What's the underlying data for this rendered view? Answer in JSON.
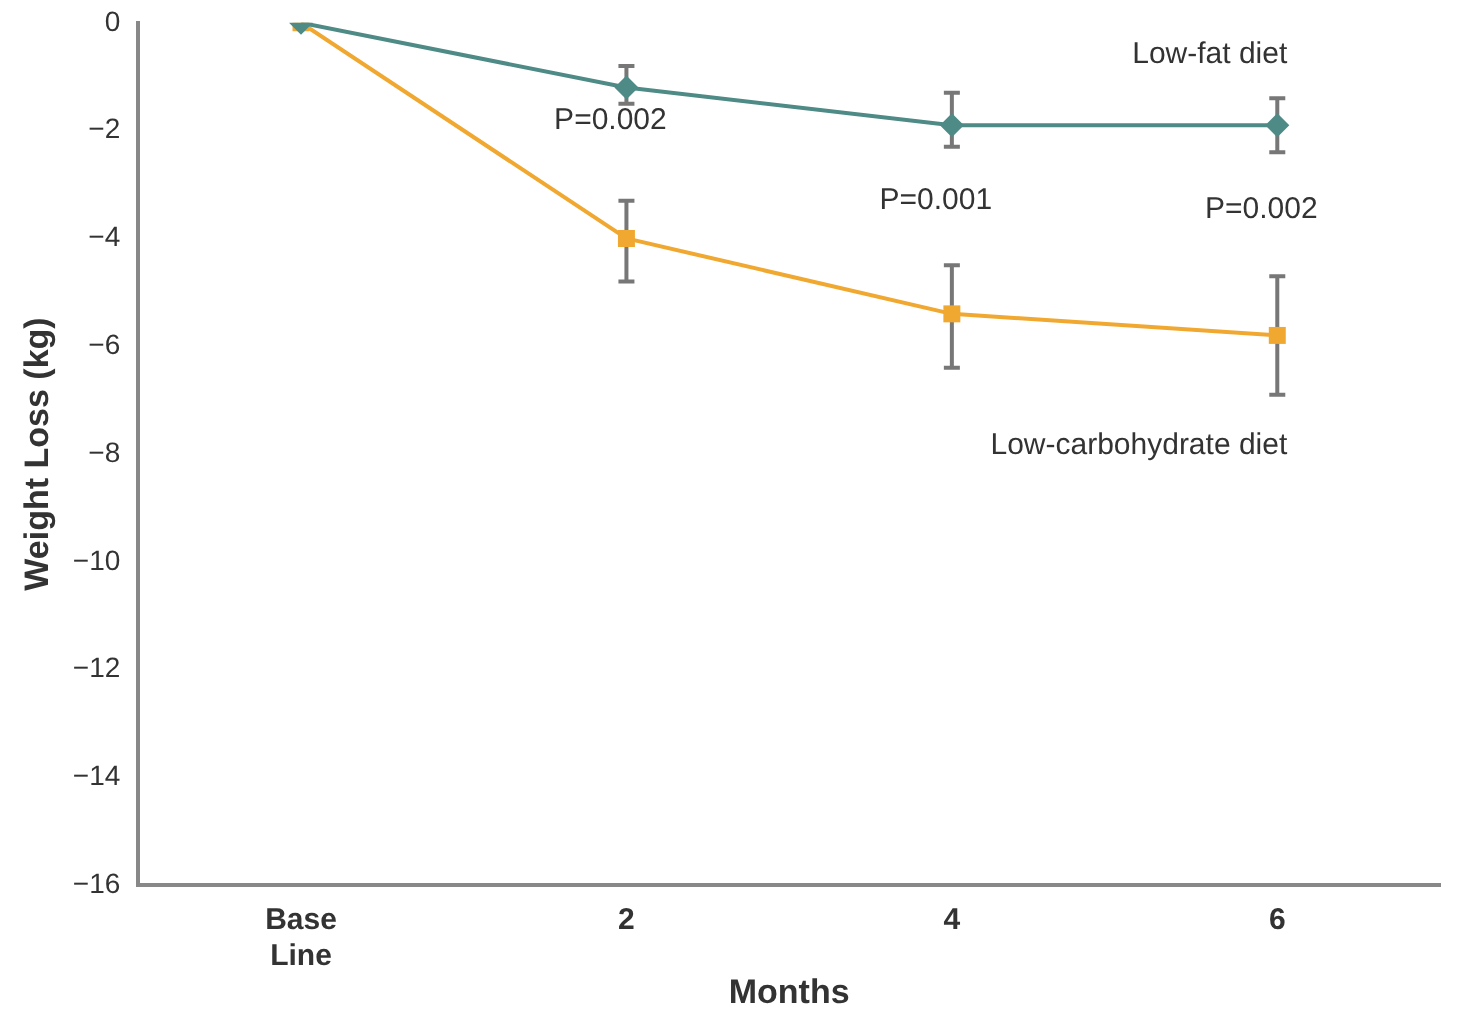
{
  "chart_data": {
    "type": "line",
    "xlabel": "Months",
    "ylabel": "Weight Loss (kg)",
    "categories": [
      "Base Line",
      "2",
      "4",
      "6"
    ],
    "ylim": [
      -16,
      0
    ],
    "yticks": [
      0,
      -2,
      -4,
      -6,
      -8,
      -10,
      -12,
      -14,
      -16
    ],
    "grid": false,
    "legend": false,
    "series": [
      {
        "name": "Low-fat diet",
        "color": "#4e8a86",
        "marker": "diamond",
        "values": [
          0,
          -1.2,
          -1.9,
          -1.9
        ],
        "errors": [
          null,
          [
            -1.5,
            -0.8
          ],
          [
            -2.3,
            -1.3
          ],
          [
            -2.4,
            -1.4
          ]
        ]
      },
      {
        "name": "Low-carbohydrate diet",
        "color": "#f0a830",
        "marker": "square",
        "values": [
          0,
          -4.0,
          -5.4,
          -5.8
        ],
        "errors": [
          null,
          [
            -4.8,
            -3.3
          ],
          [
            -6.4,
            -4.5
          ],
          [
            -6.9,
            -4.7
          ]
        ]
      }
    ],
    "annotations": [
      "P=0.002",
      "P=0.001",
      "P=0.002"
    ]
  }
}
